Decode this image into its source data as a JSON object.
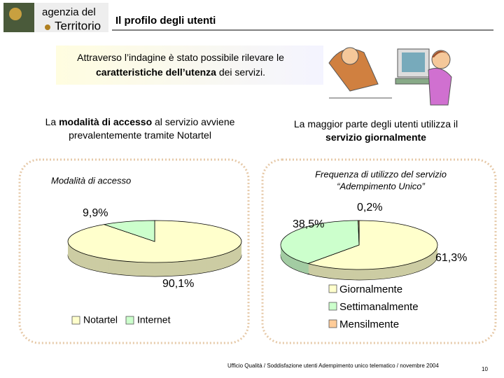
{
  "header": {
    "logo_lines": [
      "agenzia del",
      "Territorio"
    ],
    "title": "Il profilo degli utenti"
  },
  "intro": [
    [
      {
        "text": "Attraverso l’indagine è stato possibile rilevare le",
        "bold": false
      }
    ],
    [
      {
        "text": "caratteristiche dell’utenza",
        "bold": true
      },
      {
        "text": " dei servizi.",
        "bold": false
      }
    ]
  ],
  "captions": [
    [
      [
        {
          "text": "La ",
          "bold": false
        },
        {
          "text": "modalità di accesso",
          "bold": true
        },
        {
          "text": " al servizio avviene",
          "bold": false
        }
      ],
      [
        {
          "text": "prevalentemente tramite Notartel",
          "bold": false
        }
      ]
    ],
    [
      [
        {
          "text": "La maggior parte degli utenti utilizza il",
          "bold": false
        }
      ],
      [
        {
          "text": "servizio giornalmente",
          "bold": true
        }
      ]
    ]
  ],
  "chart_data": [
    {
      "type": "pie",
      "title": [
        "Modalità di accesso"
      ],
      "categories": [
        "Notartel",
        "Internet"
      ],
      "values": [
        90.1,
        9.9
      ],
      "value_labels": [
        "90,1%",
        "9,9%"
      ],
      "colors": [
        "#ffffcc",
        "#ccffcc"
      ],
      "legend": "bottom"
    },
    {
      "type": "pie",
      "title": [
        "Frequenza di utilizzo del servizio",
        "“Adempimento Unico”"
      ],
      "categories": [
        "Giornalmente",
        "Settimanalmente",
        "Mensilmente"
      ],
      "values": [
        61.3,
        38.5,
        0.2
      ],
      "value_labels": [
        "61,3%",
        "38,5%",
        "0,2%"
      ],
      "colors": [
        "#ffffcc",
        "#ccffcc",
        "#ffcc99"
      ],
      "legend": "bottom"
    }
  ],
  "footer": {
    "text": "Ufficio Qualità / Soddisfazione utenti Adempimento unico telematico / novembre 2004",
    "page": "10"
  }
}
